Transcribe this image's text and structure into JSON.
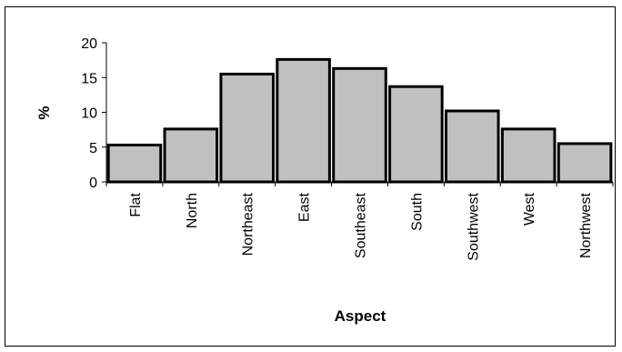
{
  "chart_data": {
    "type": "bar",
    "title": "",
    "xlabel": "Aspect",
    "ylabel": "%",
    "categories": [
      "Flat",
      "North",
      "Northeast",
      "East",
      "Southeast",
      "South",
      "Southwest",
      "West",
      "Northwest"
    ],
    "values": [
      5.3,
      7.6,
      15.5,
      17.6,
      16.3,
      13.7,
      10.2,
      7.6,
      5.5
    ],
    "ylim": [
      0,
      20
    ],
    "yticks": [
      0,
      5,
      10,
      15,
      20
    ],
    "ytick_labels": [
      "0",
      "5",
      "10",
      "15",
      "20"
    ],
    "grid": false,
    "legend": "none",
    "colors": {
      "bar_fill": "#c0c0c0",
      "bar_stroke": "#000000",
      "axis": "#000000",
      "background": "#ffffff"
    }
  }
}
